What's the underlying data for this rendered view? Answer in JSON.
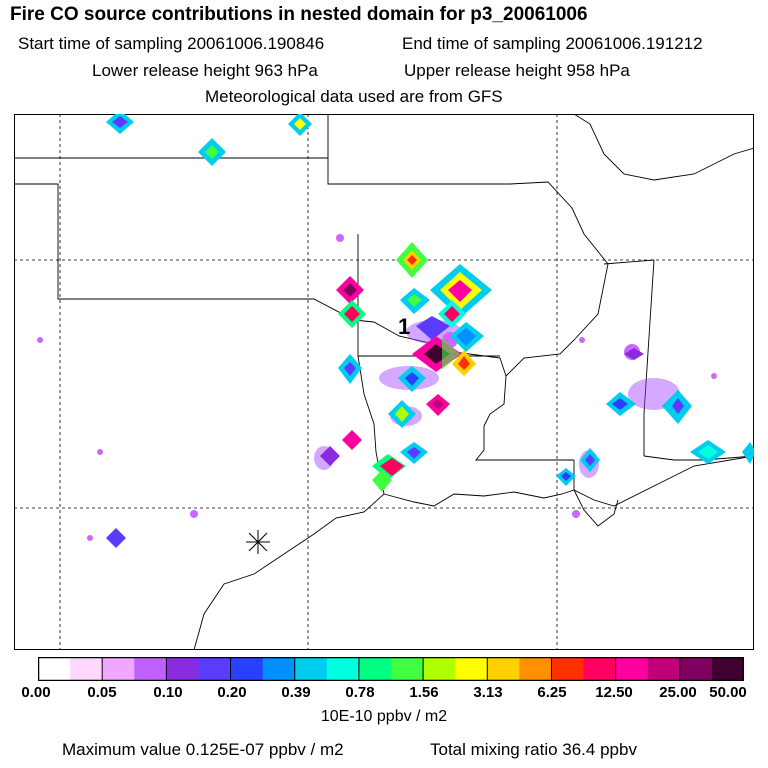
{
  "header": {
    "title": "Fire CO source contributions in nested domain for p3_20061006",
    "start_label": "Start time of sampling 20061006.190846",
    "end_label": "End time of sampling 20061006.191212",
    "lower_label": "Lower release height  963 hPa",
    "upper_label": "Upper release height  958 hPa",
    "met_label": "Meteorological data used are from GFS"
  },
  "map": {
    "marker_label": "1",
    "background": "#ffffff",
    "boundary_color": "#000000"
  },
  "colorbar": {
    "ticks": [
      "0.00",
      "0.05",
      "0.10",
      "0.20",
      "0.39",
      "0.78",
      "1.56",
      "3.13",
      "6.25",
      "12.50",
      "25.00",
      "50.00"
    ],
    "units": "10E-10 ppbv / m2",
    "colors": [
      "#ffffff",
      "#ffd8ff",
      "#f0a8ff",
      "#c060ff",
      "#8a2be2",
      "#5a3cff",
      "#2a40ff",
      "#0090ff",
      "#00ccee",
      "#00ffe0",
      "#00ff80",
      "#40ff40",
      "#b0ff00",
      "#ffff00",
      "#ffd000",
      "#ff9000",
      "#ff3000",
      "#ff0060",
      "#ff00a0",
      "#c0007a",
      "#800060",
      "#400030"
    ]
  },
  "footer": {
    "max_label": "Maximum value  0.125E-07 ppbv / m2",
    "total_label": "Total mixing ratio      36.4 ppbv"
  }
}
